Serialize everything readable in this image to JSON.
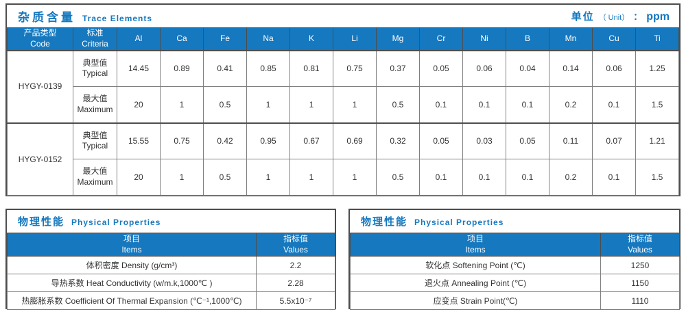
{
  "colors": {
    "accent": "#1678BE",
    "outer_border": "#4d4d4d",
    "inner_border": "#7f7f7f",
    "header_text": "#ffffff",
    "body_text": "#333333"
  },
  "trace_elements": {
    "title_zh": "杂质含量",
    "title_en": "Trace Elements",
    "unit_zh": "单位",
    "unit_en": "（ Unit）",
    "unit_colon": "：",
    "unit_value": "ppm",
    "col_headers": {
      "code_zh": "产品类型",
      "code_en": "Code",
      "criteria_zh": "标准",
      "criteria_en": "Criteria"
    },
    "elements": [
      "Al",
      "Ca",
      "Fe",
      "Na",
      "K",
      "Li",
      "Mg",
      "Cr",
      "Ni",
      "B",
      "Mn",
      "Cu",
      "Ti"
    ],
    "products": [
      {
        "code": "HYGY-0139",
        "rows": [
          {
            "criteria_zh": "典型值",
            "criteria_en": "Typical",
            "values": [
              "14.45",
              "0.89",
              "0.41",
              "0.85",
              "0.81",
              "0.75",
              "0.37",
              "0.05",
              "0.06",
              "0.04",
              "0.14",
              "0.06",
              "1.25"
            ]
          },
          {
            "criteria_zh": "最大值",
            "criteria_en": "Maximum",
            "values": [
              "20",
              "1",
              "0.5",
              "1",
              "1",
              "1",
              "0.5",
              "0.1",
              "0.1",
              "0.1",
              "0.2",
              "0.1",
              "1.5"
            ]
          }
        ]
      },
      {
        "code": "HYGY-0152",
        "rows": [
          {
            "criteria_zh": "典型值",
            "criteria_en": "Typical",
            "values": [
              "15.55",
              "0.75",
              "0.42",
              "0.95",
              "0.67",
              "0.69",
              "0.32",
              "0.05",
              "0.03",
              "0.05",
              "0.11",
              "0.07",
              "1.21"
            ]
          },
          {
            "criteria_zh": "最大值",
            "criteria_en": "Maximum",
            "values": [
              "20",
              "1",
              "0.5",
              "1",
              "1",
              "1",
              "0.5",
              "0.1",
              "0.1",
              "0.1",
              "0.2",
              "0.1",
              "1.5"
            ]
          }
        ]
      }
    ]
  },
  "physical_left": {
    "title_zh": "物理性能",
    "title_en": "Physical Properties",
    "header_items_zh": "项目",
    "header_items_en": "Items",
    "header_values_zh": "指标值",
    "header_values_en": "Values",
    "rows": [
      {
        "item": "体积密度 Density (g/cm³)",
        "value": "2.2"
      },
      {
        "item": "导热系数 Heat Conductivity (w/m.k,1000℃ )",
        "value": "2.28"
      },
      {
        "item": "热膨胀系数 Coefficient Of Thermal Expansion (℃⁻¹,1000℃)",
        "value": "5.5x10⁻⁷"
      }
    ]
  },
  "physical_right": {
    "title_zh": "物理性能",
    "title_en": "Physical Properties",
    "header_items_zh": "项目",
    "header_items_en": "Items",
    "header_values_zh": "指标值",
    "header_values_en": "Values",
    "rows": [
      {
        "item": "软化点 Softening Point (℃)",
        "value": "1250"
      },
      {
        "item": "退火点 Annealing Point (℃)",
        "value": "1150"
      },
      {
        "item": "应变点 Strain Point(℃)",
        "value": "1110"
      }
    ]
  }
}
